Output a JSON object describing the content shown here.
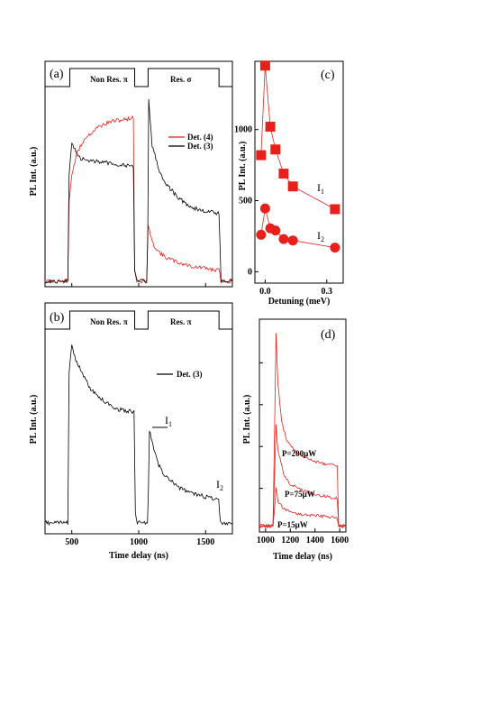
{
  "chart_data": [
    {
      "panel": "(a)",
      "type": "line",
      "ylabel": "PL Int. (a.u.)",
      "xlim": [
        300,
        1700
      ],
      "ylim": [
        0,
        1
      ],
      "pulse_labels": [
        "Non Res. π",
        "Res. σ"
      ],
      "pulse_windows": [
        [
          485,
          970
        ],
        [
          1070,
          1600
        ]
      ],
      "series": [
        {
          "name": "Det. (4)",
          "color": "#e8201c",
          "x": [
            300,
            470,
            480,
            500,
            540,
            600,
            700,
            800,
            900,
            960,
            970,
            985,
            1060,
            1070,
            1080,
            1100,
            1150,
            1200,
            1300,
            1400,
            1500,
            1580,
            1600,
            1615,
            1700
          ],
          "values": [
            0.02,
            0.02,
            0.45,
            0.6,
            0.72,
            0.8,
            0.86,
            0.89,
            0.9,
            0.91,
            0.08,
            0.02,
            0.02,
            0.32,
            0.3,
            0.23,
            0.18,
            0.15,
            0.12,
            0.1,
            0.09,
            0.08,
            0.08,
            0.02,
            0.02
          ]
        },
        {
          "name": "Det. (3)",
          "color": "#000000",
          "x": [
            300,
            470,
            480,
            500,
            530,
            560,
            600,
            700,
            800,
            900,
            960,
            970,
            985,
            1060,
            1068,
            1075,
            1100,
            1150,
            1200,
            1300,
            1400,
            1500,
            1580,
            1600,
            1615,
            1700
          ],
          "values": [
            0.02,
            0.02,
            0.6,
            0.78,
            0.72,
            0.69,
            0.68,
            0.67,
            0.66,
            0.65,
            0.64,
            0.08,
            0.02,
            0.02,
            0.3,
            1.0,
            0.76,
            0.63,
            0.55,
            0.47,
            0.42,
            0.4,
            0.39,
            0.39,
            0.02,
            0.02
          ]
        }
      ]
    },
    {
      "panel": "(b)",
      "type": "line",
      "ylabel": "PL Int. (a.u.)",
      "xlabel": "Time delay (ns)",
      "x_ticks": [
        500,
        1000,
        1500
      ],
      "xlim": [
        300,
        1700
      ],
      "ylim": [
        0,
        1
      ],
      "pulse_labels": [
        "Non Res. π",
        "Res. π"
      ],
      "pulse_windows": [
        [
          485,
          970
        ],
        [
          1070,
          1600
        ]
      ],
      "annotations": [
        {
          "text": "I",
          "sub": "1"
        },
        {
          "text": "I",
          "sub": "2"
        }
      ],
      "series": [
        {
          "name": "Det. (3)",
          "color": "#000000",
          "x": [
            300,
            470,
            480,
            500,
            530,
            580,
            650,
            750,
            850,
            950,
            965,
            975,
            990,
            1065,
            1072,
            1080,
            1100,
            1150,
            1200,
            1300,
            1400,
            1500,
            1580,
            1598,
            1610,
            1700
          ],
          "values": [
            0.02,
            0.02,
            0.82,
            0.98,
            0.9,
            0.82,
            0.73,
            0.67,
            0.63,
            0.62,
            0.62,
            0.08,
            0.02,
            0.02,
            0.18,
            0.52,
            0.45,
            0.33,
            0.27,
            0.21,
            0.18,
            0.16,
            0.15,
            0.15,
            0.02,
            0.02
          ]
        }
      ]
    },
    {
      "panel": "(c)",
      "type": "scatter",
      "xlabel": "Detuning (meV)",
      "ylabel": "PL Int. (a.u.)",
      "x_ticks": [
        "0.0",
        "0.3"
      ],
      "y_ticks": [
        "0",
        "500",
        "1000"
      ],
      "xlim": [
        -0.05,
        0.38
      ],
      "ylim": [
        -80,
        1480
      ],
      "series": [
        {
          "name": "I1",
          "label_main": "I",
          "label_sub": "1",
          "marker": "square",
          "color": "#e8201c",
          "x": [
            -0.02,
            0.0,
            0.025,
            0.05,
            0.09,
            0.135,
            0.34
          ],
          "values": [
            820,
            1450,
            1020,
            860,
            690,
            600,
            440
          ]
        },
        {
          "name": "I2",
          "label_main": "I",
          "label_sub": "2",
          "marker": "circle",
          "color": "#e8201c",
          "x": [
            -0.02,
            0.0,
            0.025,
            0.05,
            0.09,
            0.135,
            0.34
          ],
          "values": [
            260,
            445,
            305,
            290,
            230,
            220,
            170
          ]
        }
      ]
    },
    {
      "panel": "(d)",
      "type": "line",
      "xlabel": "Time delay (ns)",
      "ylabel": "PL Int. (a.u.)",
      "x_ticks": [
        "1000",
        "1200",
        "1400",
        "1600"
      ],
      "xlim": [
        950,
        1650
      ],
      "ylim": [
        0,
        1
      ],
      "series": [
        {
          "name": "P=200μW",
          "color": "#e8201c",
          "x": [
            950,
            1060,
            1075,
            1085,
            1100,
            1130,
            1170,
            1250,
            1350,
            1450,
            1550,
            1580,
            1592,
            1650
          ],
          "values": [
            0.02,
            0.02,
            0.55,
            0.95,
            0.7,
            0.52,
            0.43,
            0.37,
            0.34,
            0.32,
            0.31,
            0.31,
            0.02,
            0.02
          ]
        },
        {
          "name": "P=75μW",
          "color": "#e8201c",
          "x": [
            950,
            1060,
            1075,
            1085,
            1100,
            1150,
            1200,
            1300,
            1400,
            1500,
            1580,
            1592,
            1650
          ],
          "values": [
            0.02,
            0.02,
            0.3,
            0.5,
            0.38,
            0.26,
            0.22,
            0.19,
            0.17,
            0.16,
            0.15,
            0.02,
            0.02
          ]
        },
        {
          "name": "P=15μW",
          "color": "#e8201c",
          "x": [
            950,
            1060,
            1075,
            1085,
            1100,
            1150,
            1200,
            1300,
            1400,
            1500,
            1580,
            1592,
            1650
          ],
          "values": [
            0.02,
            0.02,
            0.12,
            0.2,
            0.14,
            0.1,
            0.085,
            0.075,
            0.07,
            0.065,
            0.06,
            0.02,
            0.02
          ]
        }
      ]
    }
  ]
}
